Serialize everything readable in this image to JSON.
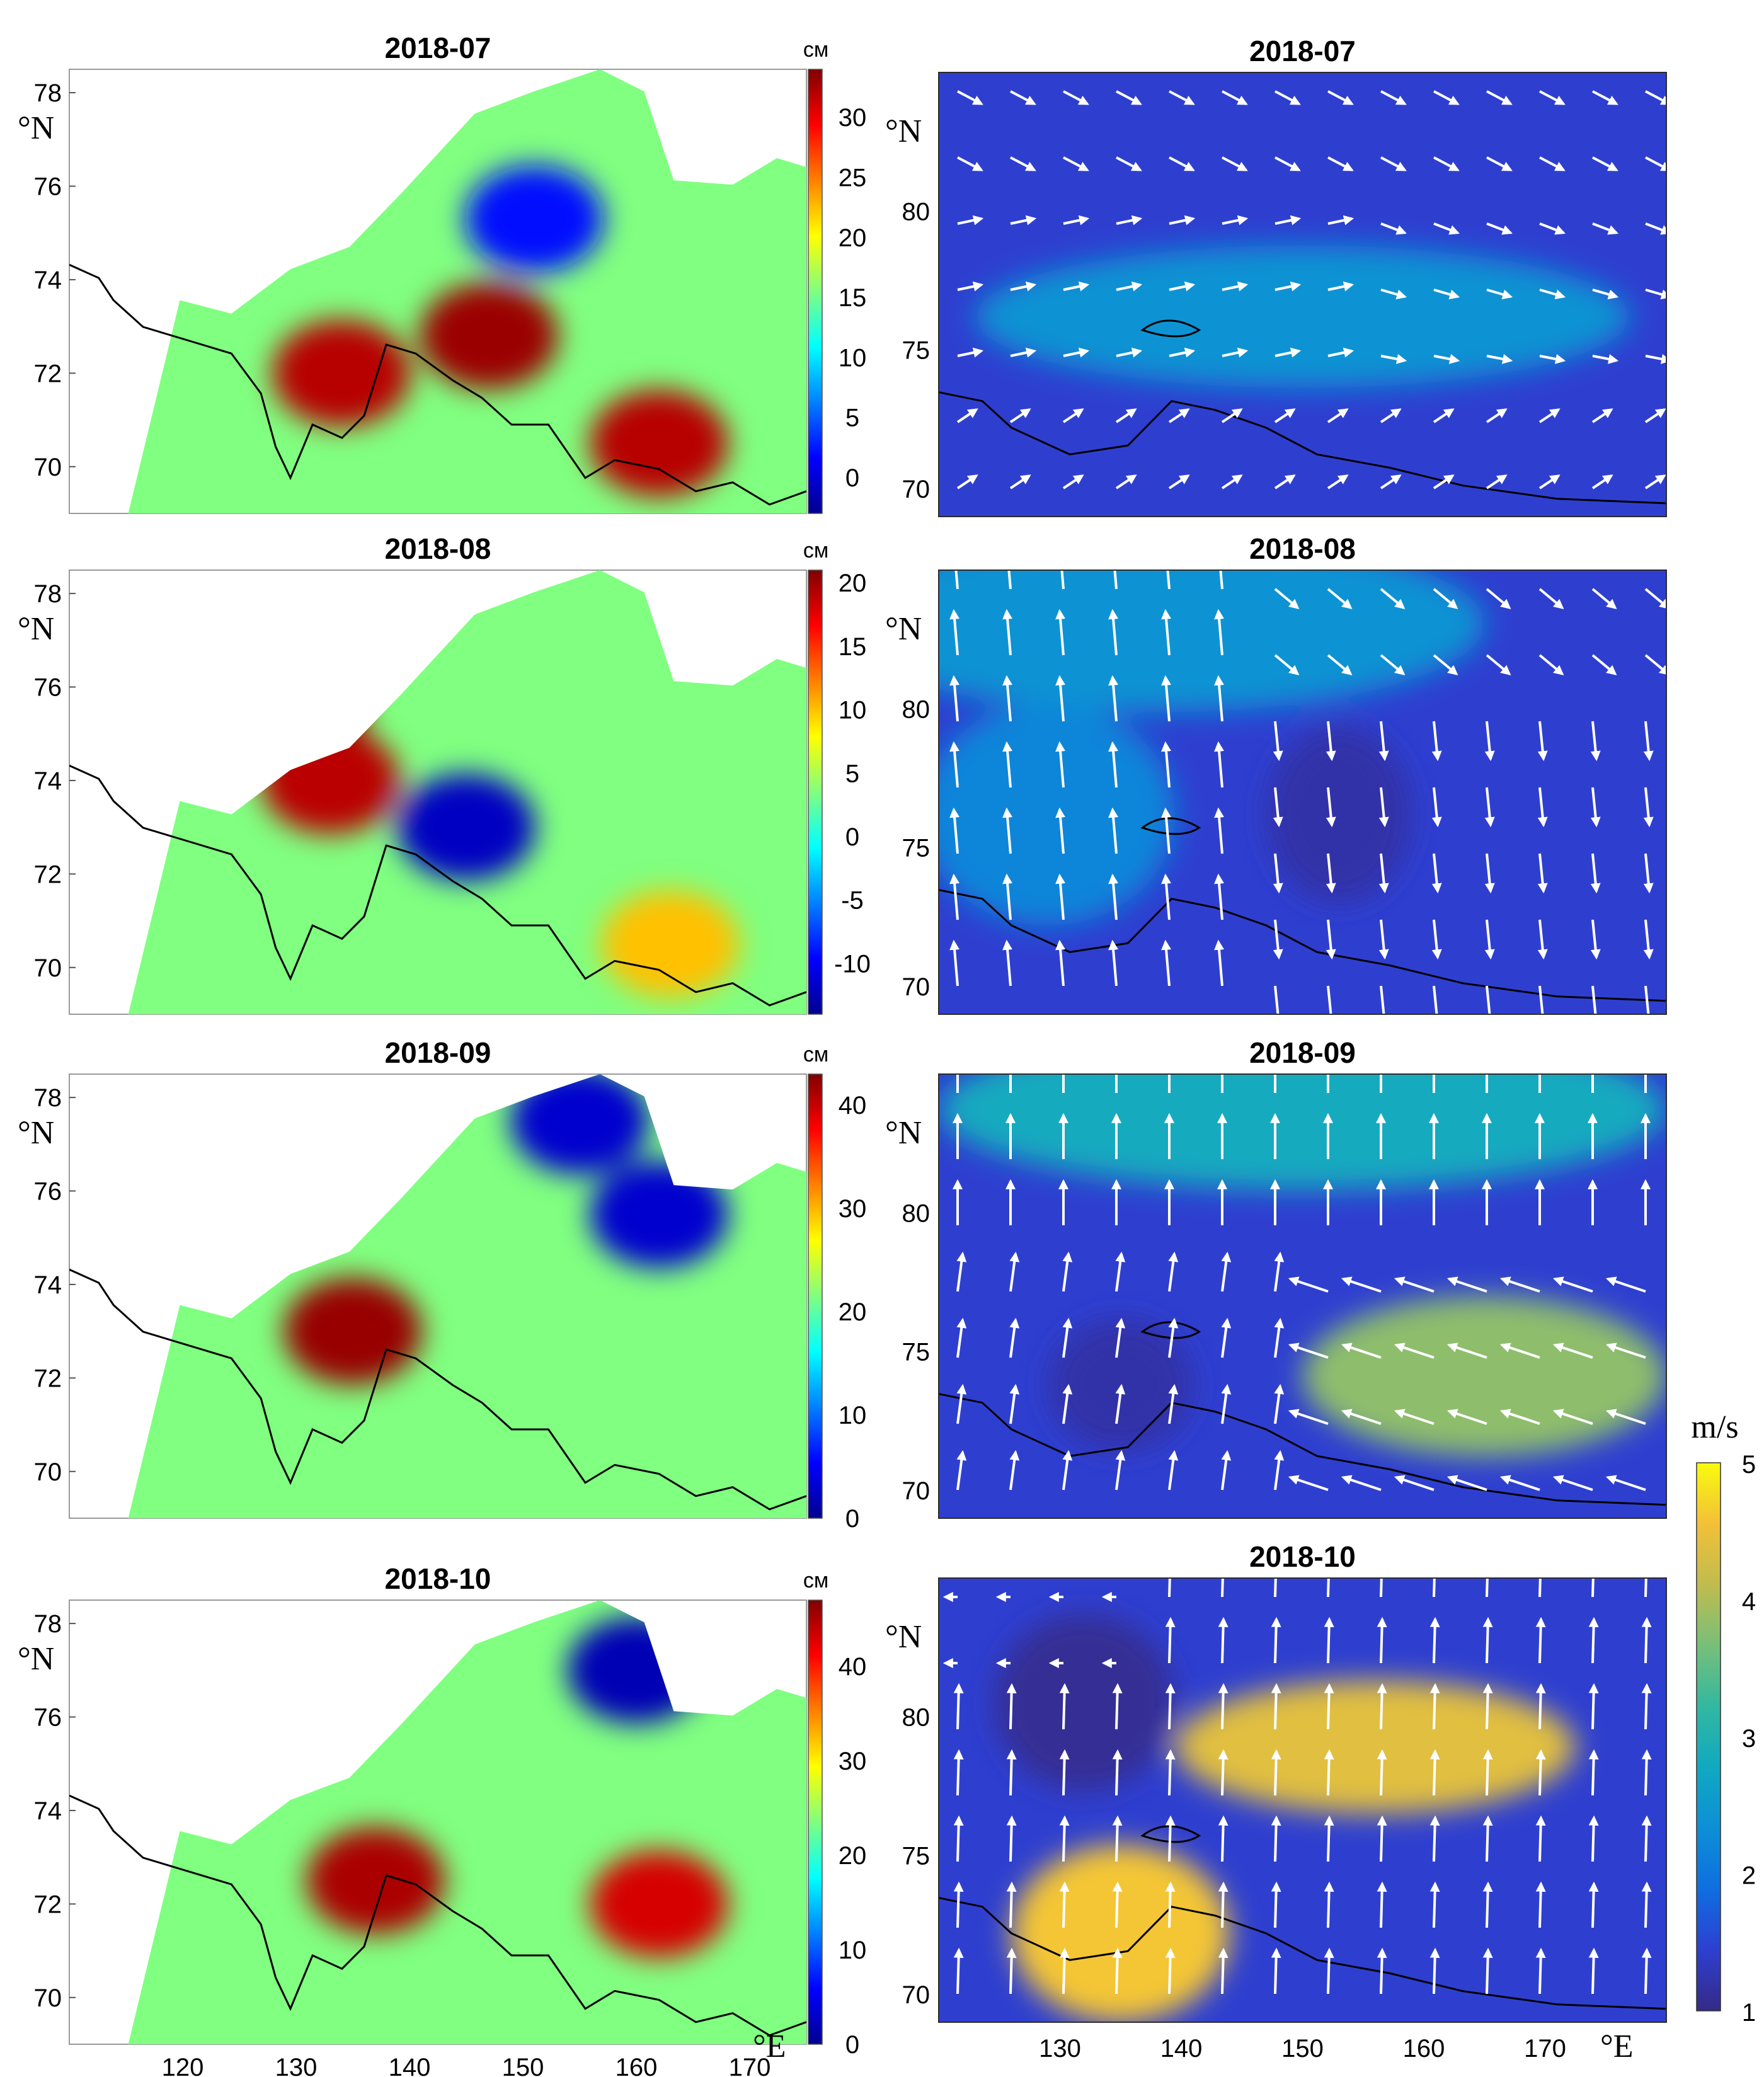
{
  "figure": {
    "deg_n_label": "°N",
    "deg_e_label": "°E",
    "wind_units": "m/s",
    "sla_units": "см"
  },
  "chart_data": [
    {
      "type": "heatmap",
      "title": "2018-07",
      "variable": "sea level anomaly",
      "units": "см",
      "xlim": [
        110,
        175
      ],
      "ylim": [
        69,
        78.5
      ],
      "yticks": [
        70,
        72,
        74,
        76,
        78
      ],
      "xticks": [],
      "colormap": "jet",
      "clim": [
        -3,
        34
      ],
      "colorbar_ticks": [
        0,
        5,
        10,
        15,
        20,
        25,
        30
      ],
      "hotspots": [
        {
          "lon": 134,
          "lat": 72,
          "value": 32
        },
        {
          "lon": 147,
          "lat": 72.8,
          "value": 33
        },
        {
          "lon": 162,
          "lat": 70.5,
          "value": 32
        },
        {
          "lon": 151,
          "lat": 75.3,
          "value": 2
        }
      ]
    },
    {
      "type": "heatmap",
      "title": "2018-08",
      "variable": "sea level anomaly",
      "units": "см",
      "xlim": [
        110,
        175
      ],
      "ylim": [
        69,
        78.5
      ],
      "yticks": [
        70,
        72,
        74,
        76,
        78
      ],
      "xticks": [],
      "colormap": "jet",
      "clim": [
        -14,
        21
      ],
      "colorbar_ticks": [
        -10,
        -5,
        0,
        5,
        10,
        15,
        20
      ],
      "hotspots": [
        {
          "lon": 130,
          "lat": 75.5,
          "value": 20
        },
        {
          "lon": 133,
          "lat": 74,
          "value": 19
        },
        {
          "lon": 145,
          "lat": 73,
          "value": -12
        },
        {
          "lon": 163,
          "lat": 70.5,
          "value": 10
        }
      ]
    },
    {
      "type": "heatmap",
      "title": "2018-09",
      "variable": "sea level anomaly",
      "units": "см",
      "xlim": [
        110,
        175
      ],
      "ylim": [
        69,
        78.5
      ],
      "yticks": [
        70,
        72,
        74,
        76,
        78
      ],
      "xticks": [],
      "colormap": "jet",
      "clim": [
        0,
        43
      ],
      "colorbar_ticks": [
        0,
        10,
        20,
        30,
        40
      ],
      "hotspots": [
        {
          "lon": 135,
          "lat": 73,
          "value": 42
        },
        {
          "lon": 162,
          "lat": 75.5,
          "value": 3
        },
        {
          "lon": 155,
          "lat": 77.5,
          "value": 3
        }
      ]
    },
    {
      "type": "heatmap",
      "title": "2018-10",
      "variable": "sea level anomaly",
      "units": "см",
      "xlim": [
        110,
        175
      ],
      "ylim": [
        69,
        78.5
      ],
      "yticks": [
        70,
        72,
        74,
        76,
        78
      ],
      "xticks": [
        120,
        130,
        140,
        150,
        160,
        170
      ],
      "colormap": "jet",
      "clim": [
        0,
        47
      ],
      "colorbar_ticks": [
        0,
        10,
        20,
        30,
        40
      ],
      "hotspots": [
        {
          "lon": 137,
          "lat": 72.5,
          "value": 45
        },
        {
          "lon": 162,
          "lat": 72,
          "value": 43
        },
        {
          "lon": 160,
          "lat": 77,
          "value": 2
        }
      ]
    },
    {
      "type": "heatmap",
      "title": "2018-07",
      "variable": "wind speed with wind vectors",
      "units": "m/s",
      "xlim": [
        120,
        180
      ],
      "ylim": [
        69,
        85
      ],
      "yticks": [
        70,
        75,
        80
      ],
      "xticks": [],
      "colormap": "parula",
      "clim": [
        1,
        5
      ],
      "wind_field": {
        "pattern": "southerly low, westerly band",
        "vectors": "eastward mid-rows, south-eastward top-right"
      }
    },
    {
      "type": "heatmap",
      "title": "2018-08",
      "variable": "wind speed with wind vectors",
      "units": "m/s",
      "xlim": [
        120,
        180
      ],
      "ylim": [
        69,
        85
      ],
      "yticks": [
        70,
        75,
        80
      ],
      "xticks": [],
      "colormap": "parula",
      "clim": [
        1,
        5
      ],
      "wind_field": {
        "pattern": "northward west, southward east",
        "vectors": "northward west half, southward east half"
      }
    },
    {
      "type": "heatmap",
      "title": "2018-09",
      "variable": "wind speed with wind vectors",
      "units": "m/s",
      "xlim": [
        120,
        180
      ],
      "ylim": [
        69,
        85
      ],
      "yticks": [
        70,
        75,
        80
      ],
      "xticks": [],
      "colormap": "parula",
      "clim": [
        1,
        5
      ],
      "wind_field": {
        "pattern": "northward, strong band near 73N east",
        "vectors": "northward top, westward south-east"
      }
    },
    {
      "type": "heatmap",
      "title": "2018-10",
      "variable": "wind speed with wind vectors",
      "units": "m/s",
      "xlim": [
        120,
        180
      ],
      "ylim": [
        69,
        85
      ],
      "yticks": [
        70,
        75,
        80
      ],
      "xticks": [
        130,
        140,
        150,
        160,
        170
      ],
      "colormap": "parula",
      "clim": [
        1,
        5
      ],
      "colorbar_ticks": [
        1,
        2,
        3,
        4,
        5
      ],
      "wind_field": {
        "pattern": "strong diagonal jet from 130E 72N to 165E 78N",
        "vectors": "northward"
      }
    }
  ]
}
